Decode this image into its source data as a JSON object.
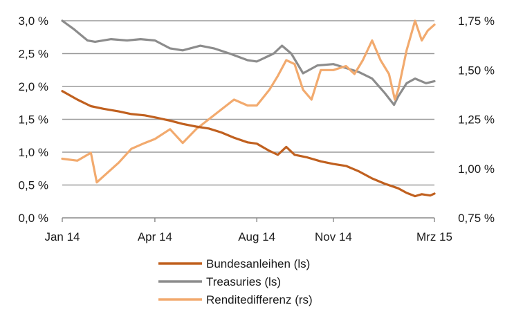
{
  "chart_data": {
    "type": "line",
    "x_axis": {
      "tick_labels": [
        "Jan 14",
        "Apr 14",
        "Aug 14",
        "Nov 14",
        "Mrz 15"
      ],
      "tick_dates": [
        "2014-01-02",
        "2014-04-22",
        "2014-08-21",
        "2014-11-20",
        "2015-03-20"
      ],
      "range": [
        "2014-01-02",
        "2015-03-20"
      ]
    },
    "y_left": {
      "tick_labels": [
        "0,0 %",
        "0,5 %",
        "1,0 %",
        "1,5 %",
        "2,0 %",
        "2,5 %",
        "3,0 %"
      ],
      "ticks": [
        0,
        0.5,
        1.0,
        1.5,
        2.0,
        2.5,
        3.0
      ],
      "range": [
        0,
        3.0
      ]
    },
    "y_right": {
      "tick_labels": [
        "0,75 %",
        "1,00 %",
        "1,25 %",
        "1,50 %",
        "1,75 %"
      ],
      "ticks": [
        0.75,
        1.0,
        1.25,
        1.5,
        1.75
      ],
      "range": [
        0.75,
        1.75
      ]
    },
    "grid": "horizontal",
    "legend_position": "bottom-center",
    "series": [
      {
        "name": "Bundesanleihen (ls)",
        "axis": "left",
        "color": "#c0601f",
        "points": [
          [
            "2014-01-02",
            1.93
          ],
          [
            "2014-01-20",
            1.8
          ],
          [
            "2014-02-05",
            1.7
          ],
          [
            "2014-02-20",
            1.66
          ],
          [
            "2014-03-10",
            1.62
          ],
          [
            "2014-03-25",
            1.58
          ],
          [
            "2014-04-10",
            1.56
          ],
          [
            "2014-04-22",
            1.53
          ],
          [
            "2014-05-10",
            1.48
          ],
          [
            "2014-05-25",
            1.43
          ],
          [
            "2014-06-10",
            1.39
          ],
          [
            "2014-06-25",
            1.36
          ],
          [
            "2014-07-10",
            1.3
          ],
          [
            "2014-07-25",
            1.22
          ],
          [
            "2014-08-10",
            1.15
          ],
          [
            "2014-08-21",
            1.13
          ],
          [
            "2014-09-05",
            1.02
          ],
          [
            "2014-09-15",
            0.96
          ],
          [
            "2014-09-25",
            1.08
          ],
          [
            "2014-10-05",
            0.96
          ],
          [
            "2014-10-20",
            0.92
          ],
          [
            "2014-11-05",
            0.86
          ],
          [
            "2014-11-20",
            0.82
          ],
          [
            "2014-12-05",
            0.79
          ],
          [
            "2014-12-20",
            0.71
          ],
          [
            "2015-01-05",
            0.6
          ],
          [
            "2015-01-20",
            0.52
          ],
          [
            "2015-02-05",
            0.45
          ],
          [
            "2015-02-15",
            0.38
          ],
          [
            "2015-02-25",
            0.33
          ],
          [
            "2015-03-05",
            0.36
          ],
          [
            "2015-03-15",
            0.34
          ],
          [
            "2015-03-20",
            0.37
          ]
        ]
      },
      {
        "name": "Treasuries (ls)",
        "axis": "left",
        "color": "#8c8c8c",
        "points": [
          [
            "2014-01-02",
            3.0
          ],
          [
            "2014-01-15",
            2.88
          ],
          [
            "2014-02-01",
            2.7
          ],
          [
            "2014-02-10",
            2.68
          ],
          [
            "2014-03-01",
            2.72
          ],
          [
            "2014-03-20",
            2.7
          ],
          [
            "2014-04-05",
            2.72
          ],
          [
            "2014-04-22",
            2.7
          ],
          [
            "2014-05-10",
            2.58
          ],
          [
            "2014-05-25",
            2.55
          ],
          [
            "2014-06-15",
            2.62
          ],
          [
            "2014-07-01",
            2.58
          ],
          [
            "2014-07-20",
            2.5
          ],
          [
            "2014-08-10",
            2.4
          ],
          [
            "2014-08-21",
            2.38
          ],
          [
            "2014-09-10",
            2.5
          ],
          [
            "2014-09-20",
            2.62
          ],
          [
            "2014-10-01",
            2.5
          ],
          [
            "2014-10-15",
            2.2
          ],
          [
            "2014-11-01",
            2.32
          ],
          [
            "2014-11-20",
            2.34
          ],
          [
            "2014-12-05",
            2.28
          ],
          [
            "2014-12-20",
            2.22
          ],
          [
            "2015-01-05",
            2.12
          ],
          [
            "2015-01-20",
            1.9
          ],
          [
            "2015-01-31",
            1.72
          ],
          [
            "2015-02-05",
            1.85
          ],
          [
            "2015-02-15",
            2.05
          ],
          [
            "2015-02-25",
            2.12
          ],
          [
            "2015-03-10",
            2.05
          ],
          [
            "2015-03-20",
            2.08
          ]
        ]
      },
      {
        "name": "Renditedifferenz (rs)",
        "axis": "right",
        "color": "#f2aa6e",
        "points": [
          [
            "2014-01-02",
            1.05
          ],
          [
            "2014-01-20",
            1.04
          ],
          [
            "2014-02-05",
            1.08
          ],
          [
            "2014-02-12",
            0.93
          ],
          [
            "2014-02-25",
            0.98
          ],
          [
            "2014-03-10",
            1.03
          ],
          [
            "2014-03-25",
            1.1
          ],
          [
            "2014-04-10",
            1.13
          ],
          [
            "2014-04-22",
            1.15
          ],
          [
            "2014-05-10",
            1.2
          ],
          [
            "2014-05-25",
            1.13
          ],
          [
            "2014-06-10",
            1.2
          ],
          [
            "2014-06-25",
            1.25
          ],
          [
            "2014-07-10",
            1.3
          ],
          [
            "2014-07-25",
            1.35
          ],
          [
            "2014-08-10",
            1.32
          ],
          [
            "2014-08-21",
            1.32
          ],
          [
            "2014-09-05",
            1.4
          ],
          [
            "2014-09-15",
            1.47
          ],
          [
            "2014-09-25",
            1.55
          ],
          [
            "2014-10-05",
            1.53
          ],
          [
            "2014-10-15",
            1.4
          ],
          [
            "2014-10-25",
            1.35
          ],
          [
            "2014-11-05",
            1.5
          ],
          [
            "2014-11-20",
            1.5
          ],
          [
            "2014-12-05",
            1.52
          ],
          [
            "2014-12-15",
            1.48
          ],
          [
            "2014-12-25",
            1.55
          ],
          [
            "2015-01-05",
            1.65
          ],
          [
            "2015-01-15",
            1.55
          ],
          [
            "2015-01-25",
            1.48
          ],
          [
            "2015-02-01",
            1.35
          ],
          [
            "2015-02-05",
            1.4
          ],
          [
            "2015-02-15",
            1.6
          ],
          [
            "2015-02-25",
            1.75
          ],
          [
            "2015-03-05",
            1.65
          ],
          [
            "2015-03-12",
            1.7
          ],
          [
            "2015-03-20",
            1.73
          ]
        ]
      }
    ]
  }
}
